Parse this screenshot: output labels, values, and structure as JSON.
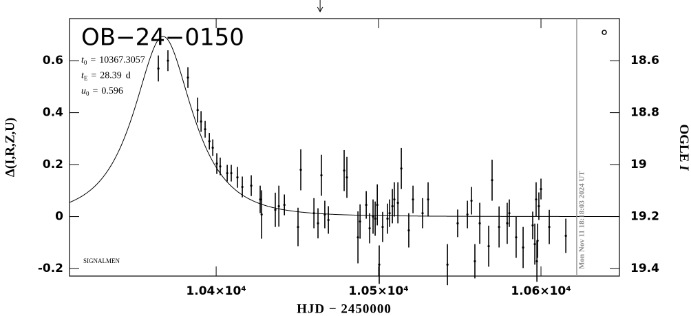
{
  "chart_data": {
    "type": "errorbar",
    "title": "OB−24−0150",
    "params": [
      {
        "symbol": "t",
        "subscript": "0",
        "relation": "=",
        "value": 10367.3057
      },
      {
        "symbol": "t",
        "subscript": "E",
        "relation": "=",
        "value": 28.39,
        "unit": "d"
      },
      {
        "symbol": "u",
        "subscript": "0",
        "relation": "=",
        "value": 0.596
      }
    ],
    "note": "SIGNALMEN",
    "timestamp": "Mon Nov 11 18:18:03 2024 UT",
    "timestamp_x": 10622,
    "arrow_x": 10464,
    "xlabel": "HJD − 2450000",
    "ylabel": "Δ(I,R,Z,U)",
    "y2label": {
      "text": "OGLE",
      "italic": "I"
    },
    "color": "#000000",
    "model_color": "#000000",
    "x": [
      10364.4,
      10370.3,
      10382.6,
      10388.6,
      10390.7,
      10393.2,
      10395.8,
      10397.9,
      10400.4,
      10402.5,
      10406.8,
      10409.3,
      10413.1,
      10416.1,
      10421.6,
      10427.1,
      10428.0,
      10436.4,
      10438.6,
      10442.0,
      10450.4,
      10452.1,
      10460.2,
      10462.7,
      10464.8,
      10466.9,
      10469.1,
      10478.8,
      10480.5,
      10487.3,
      10488.6,
      10492.4,
      10494.5,
      10496.6,
      10497.9,
      10499.2,
      10500.4,
      10502.5,
      10505.5,
      10506.8,
      10508.5,
      10509.7,
      10511.9,
      10514.0,
      10518.6,
      10521.2,
      10527.1,
      10530.5,
      10542.4,
      10548.7,
      10554.7,
      10557.2,
      10559.3,
      10562.3,
      10567.8,
      10569.9,
      10574.2,
      10579.2,
      10580.5,
      10584.7,
      10589.0,
      10594.9,
      10596.2,
      10597.0,
      10597.5,
      10597.9,
      10598.7,
      10600.0,
      10605.1,
      10615.3
    ],
    "values": [
      0.57,
      0.6,
      0.535,
      0.41,
      0.366,
      0.336,
      0.29,
      0.265,
      0.204,
      0.193,
      0.167,
      0.167,
      0.151,
      0.114,
      0.119,
      0.066,
      0.008,
      0.026,
      0.04,
      0.045,
      -0.04,
      0.18,
      0.013,
      -0.026,
      0.159,
      0.008,
      -0.013,
      0.177,
      0.151,
      -0.08,
      -0.019,
      0.045,
      -0.045,
      0,
      -0.008,
      0.045,
      -0.185,
      -0.04,
      -0.008,
      0.013,
      0.04,
      0.066,
      0.053,
      0.185,
      -0.053,
      0.066,
      0.013,
      0.066,
      -0.185,
      -0.026,
      0.008,
      0.061,
      -0.172,
      -0.026,
      -0.114,
      0.14,
      -0.04,
      -0.026,
      0.013,
      -0.08,
      -0.119,
      -0.034,
      -0.106,
      0.066,
      -0.172,
      -0.093,
      0.04,
      0.106,
      -0.04,
      -0.074
    ],
    "errors": [
      0.05,
      0.04,
      0.04,
      0.048,
      0.04,
      0.032,
      0.032,
      0.032,
      0.04,
      0.034,
      0.032,
      0.032,
      0.04,
      0.04,
      0.04,
      0.053,
      0.093,
      0.066,
      0.079,
      0.04,
      0.074,
      0.079,
      0.058,
      0.058,
      0.079,
      0.053,
      0.053,
      0.079,
      0.079,
      0.1,
      0.066,
      0.053,
      0.058,
      0.066,
      0.066,
      0.079,
      0.074,
      0.058,
      0.058,
      0.053,
      0.066,
      0.066,
      0.079,
      0.079,
      0.066,
      0.053,
      0.058,
      0.066,
      0.079,
      0.053,
      0.053,
      0.053,
      0.066,
      0.079,
      0.079,
      0.079,
      0.079,
      0.079,
      0.053,
      0.079,
      0.079,
      0.053,
      0.079,
      0.066,
      0.079,
      0.066,
      0.053,
      0.04,
      0.066,
      0.066
    ],
    "xlim": [
      10309.7,
      10648.3
    ],
    "xticks": [
      {
        "value": 10400,
        "label": "1.04×10⁴"
      },
      {
        "value": 10500,
        "label": "1.05×10⁴"
      },
      {
        "value": 10600,
        "label": "1.06×10⁴"
      }
    ],
    "ylim": [
      -0.229,
      0.762
    ],
    "yticks": [
      -0.2,
      0,
      0.2,
      0.4,
      0.6
    ],
    "y2lim": [
      19.429,
      18.438
    ],
    "y2ticks": [
      18.6,
      18.8,
      19,
      19.2,
      19.4
    ]
  }
}
